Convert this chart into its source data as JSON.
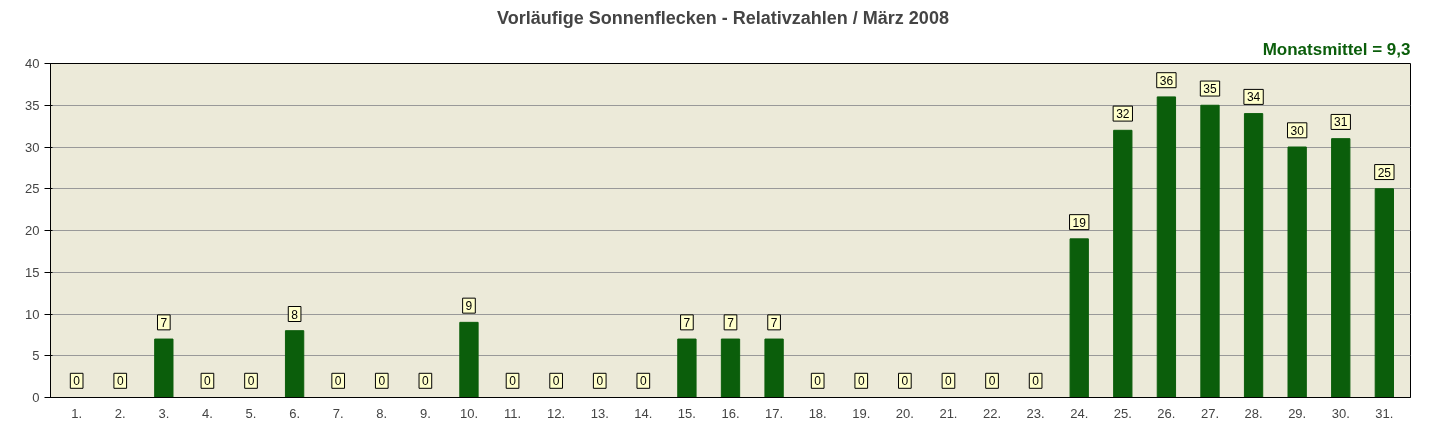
{
  "chart_data": {
    "type": "bar",
    "title": "Vorläufige Sonnenflecken - Relativzahlen  /   März 2008",
    "annotations": [
      "Monatsmittel = 9,3"
    ],
    "categories": [
      "1.",
      "2.",
      "3.",
      "4.",
      "5.",
      "6.",
      "7.",
      "8.",
      "9.",
      "10.",
      "11.",
      "12.",
      "13.",
      "14.",
      "15.",
      "16.",
      "17.",
      "18.",
      "19.",
      "20.",
      "21.",
      "22.",
      "23.",
      "24.",
      "25.",
      "26.",
      "27.",
      "28.",
      "29.",
      "30.",
      "31."
    ],
    "values": [
      0,
      0,
      7,
      0,
      0,
      8,
      0,
      0,
      0,
      9,
      0,
      0,
      0,
      0,
      7,
      7,
      7,
      0,
      0,
      0,
      0,
      0,
      0,
      19,
      32,
      36,
      35,
      34,
      30,
      31,
      25
    ],
    "color": "#0b5e0b",
    "ylim": [
      0,
      40
    ],
    "yticks": [
      0,
      5,
      10,
      15,
      20,
      25,
      30,
      35,
      40
    ],
    "grid": "y",
    "data_labels": true
  }
}
